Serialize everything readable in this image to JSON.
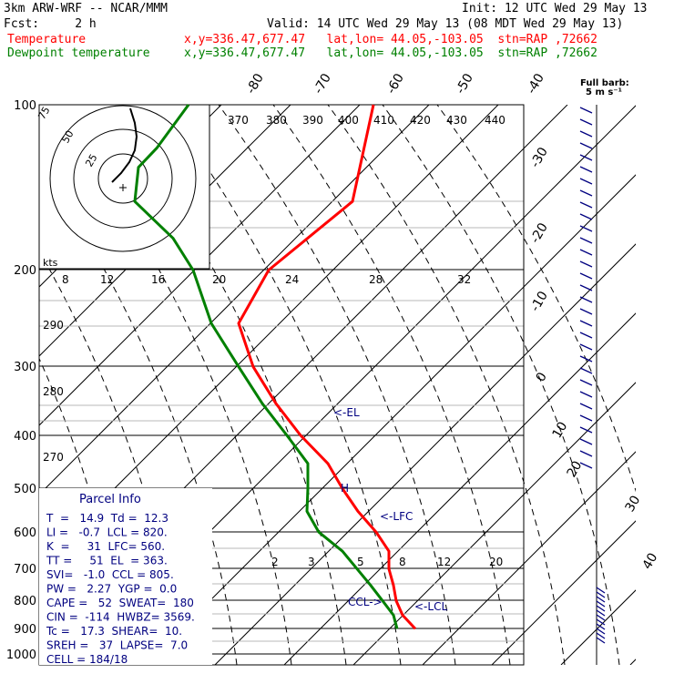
{
  "header": {
    "model": "3km ARW-WRF -- NCAR/MMM",
    "init": "Init: 12 UTC Wed 29 May 13",
    "fcst": "Fcst:     2 h",
    "valid": "Valid: 14 UTC Wed 29 May 13 (08 MDT Wed 29 May 13)",
    "temp_label": "Temperature",
    "temp_loc": "x,y=336.47,677.47   lat,lon= 44.05,-103.05  stn=RAP ,72662",
    "dew_label": "Dewpoint temperature",
    "dew_loc": "x,y=336.47,677.47   lat,lon= 44.05,-103.05  stn=RAP ,72662"
  },
  "colors": {
    "temperature": "#ff0000",
    "dewpoint": "#008000",
    "parcel_text": "#000080",
    "axes": "#000000"
  },
  "chart_data": {
    "type": "line",
    "title": "",
    "ylabel": "",
    "xlabel": "",
    "y_scale": "log-pressure",
    "pressure_ticks": [
      "100",
      "200",
      "300",
      "400",
      "500",
      "600",
      "700",
      "800",
      "900",
      "1000"
    ],
    "isotherm_labels_top": [
      "-80",
      "-70",
      "-60",
      "-50",
      "-40"
    ],
    "isotherm_labels_right": [
      "-30",
      "-20",
      "-10",
      "0",
      "10",
      "20",
      "30",
      "40"
    ],
    "theta_e_labels": [
      "370",
      "380",
      "390",
      "400",
      "410",
      "420",
      "430",
      "440"
    ],
    "theta_labels": [
      "290",
      "280",
      "270"
    ],
    "mixing_ratio_labels": [
      "2",
      "3",
      "5",
      "8",
      "12",
      "20"
    ],
    "hodograph": {
      "unit": "kts",
      "ring_labels": [
        "75",
        "50",
        "25"
      ],
      "axis_labels": [
        "8",
        "12",
        "16",
        "20",
        "24",
        "28",
        "32"
      ]
    },
    "annotations": [
      "<-EL",
      "<-LFC",
      "CCL->",
      "<-LCL",
      "H"
    ],
    "wind_legend": [
      "Full barb:",
      "5 m s⁻¹"
    ],
    "series": [
      {
        "name": "Temperature",
        "color": "#ff0000",
        "points": [
          [
            100,
            410
          ],
          [
            150,
            387
          ],
          [
            200,
            295
          ],
          [
            250,
            262
          ],
          [
            300,
            278
          ],
          [
            350,
            303
          ],
          [
            400,
            330
          ],
          [
            450,
            360
          ],
          [
            500,
            376
          ],
          [
            550,
            393
          ],
          [
            600,
            413
          ],
          [
            650,
            427
          ],
          [
            700,
            427
          ],
          [
            750,
            432
          ],
          [
            800,
            435
          ],
          [
            850,
            442
          ],
          [
            900,
            456
          ]
        ]
      },
      {
        "name": "Dewpoint temperature",
        "color": "#008000",
        "points": [
          [
            100,
            207
          ],
          [
            120,
            172
          ],
          [
            130,
            152
          ],
          [
            150,
            148
          ],
          [
            175,
            190
          ],
          [
            200,
            212
          ],
          [
            250,
            232
          ],
          [
            300,
            262
          ],
          [
            350,
            288
          ],
          [
            400,
            315
          ],
          [
            450,
            338
          ],
          [
            500,
            338
          ],
          [
            550,
            337
          ],
          [
            600,
            350
          ],
          [
            650,
            376
          ],
          [
            700,
            392
          ],
          [
            750,
            407
          ],
          [
            800,
            420
          ],
          [
            850,
            432
          ],
          [
            900,
            436
          ]
        ]
      }
    ]
  },
  "parcel_info": {
    "title": "Parcel Info",
    "rows": [
      "T  =   14.9  Td =  12.3",
      "LI =   -0.7  LCL = 820.",
      "K  =     31  LFC= 560.",
      "TT =     51  EL  = 363.",
      "SVI=   -1.0  CCL = 805.",
      "PW =   2.27  YGP =  0.0",
      "CAPE =   52  SWEAT=  180",
      "CIN =  -114  HWBZ= 3569.",
      "Tc =   17.3  SHEAR=  10.",
      "SREH =   37  LAPSE=  7.0",
      "CELL = 184/18"
    ]
  }
}
